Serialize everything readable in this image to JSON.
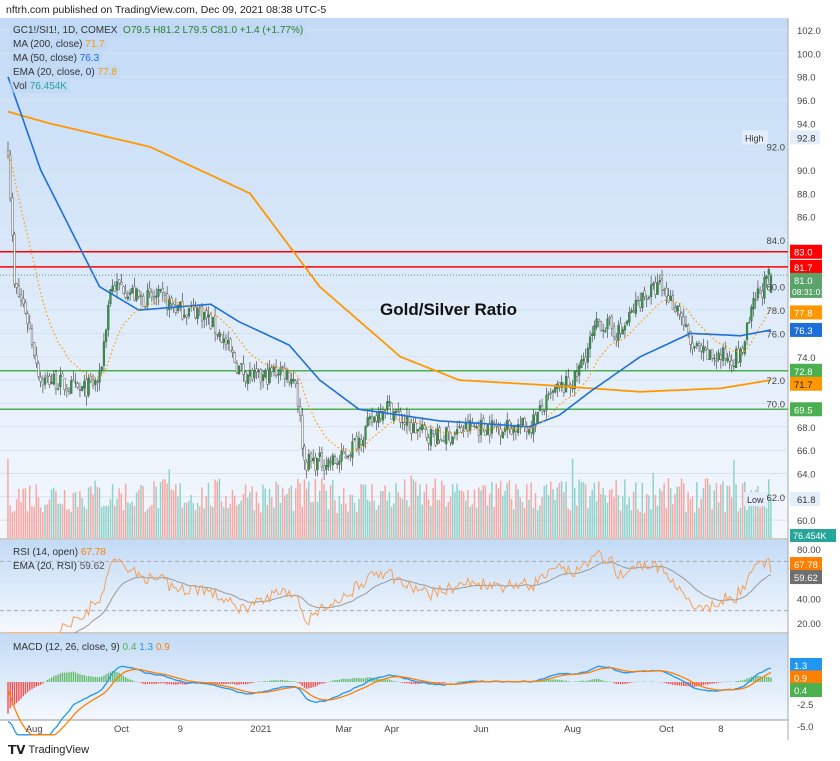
{
  "header": {
    "publisher": "nftrh.com published on TradingView.com, Dec 09, 2021 08:38 UTC-5"
  },
  "legend": {
    "symbol": "GC1!/SI1!, 1D, COMEX",
    "ohlc": "O79.5  H81.2  L79.5  C81.0  +1.4 (+1.77%)",
    "ma200_label": "MA (200, close)",
    "ma200_value": "71.7",
    "ma50_label": "MA (50, close)",
    "ma50_value": "76.3",
    "ema20_label": "EMA (20, close, 0)",
    "ema20_value": "77.8",
    "vol_label": "Vol",
    "vol_value": "76.454K",
    "rsi_label": "RSI (14, open)",
    "rsi_value": "67.78",
    "rsi_ema_label": "EMA (20, RSI)",
    "rsi_ema_value": "59.62",
    "macd_label": "MACD (12, 26, close, 9)",
    "macd_hist": "0.4",
    "macd_line": "1.3",
    "macd_signal": "0.9"
  },
  "annotation": "Gold/Silver Ratio",
  "high_label": "High",
  "high_value": "92.8",
  "low_label": "Low",
  "low_value": "61.8",
  "price_tags": {
    "last": "81.0",
    "countdown": "08:31:01",
    "red1": "83.0",
    "red2": "81.7",
    "ema": "77.8",
    "ma50": "76.3",
    "green1": "72.8",
    "ma200": "71.7",
    "green2": "69.5",
    "vol": "76.454K",
    "rsi": "67.78",
    "rsi_ema": "59.62",
    "macd_line": "1.3",
    "macd_signal": "0.9",
    "macd_hist": "0.4"
  },
  "footer": {
    "brand": "TradingView"
  },
  "colors": {
    "up": "#26a69a",
    "down": "#ef5350",
    "ma200": "#ff9800",
    "ma50": "#2962ff",
    "ema": "#ff9800",
    "red_line": "#ff0000",
    "green_line": "#4caf50"
  },
  "chart_data": {
    "type": "candlestick",
    "price_axis": {
      "min": 60,
      "max": 102,
      "ticks": [
        60,
        62,
        64,
        66,
        68,
        70,
        72,
        74,
        76,
        78,
        80,
        84,
        86,
        88,
        90,
        92,
        94,
        96,
        98,
        100,
        102
      ]
    },
    "rsi_axis": {
      "ticks": [
        20,
        40,
        80
      ]
    },
    "macd_axis": {
      "ticks": [
        -5.0,
        -2.5
      ]
    },
    "x_labels": [
      {
        "day": 12,
        "label": "Aug"
      },
      {
        "day": 52,
        "label": "Oct"
      },
      {
        "day": 79,
        "label": "9"
      },
      {
        "day": 116,
        "label": "2021"
      },
      {
        "day": 154,
        "label": "Mar"
      },
      {
        "day": 176,
        "label": "Apr"
      },
      {
        "day": 217,
        "label": "Jun"
      },
      {
        "day": 259,
        "label": "Aug"
      },
      {
        "day": 302,
        "label": "Oct"
      },
      {
        "day": 327,
        "label": "8"
      }
    ],
    "horizontal_lines": [
      {
        "value": 83.0,
        "color": "red"
      },
      {
        "value": 81.7,
        "color": "red"
      },
      {
        "value": 72.8,
        "color": "green"
      },
      {
        "value": 69.5,
        "color": "green"
      }
    ],
    "close_anchors": [
      [
        0,
        92
      ],
      [
        3,
        80
      ],
      [
        8,
        78
      ],
      [
        15,
        72
      ],
      [
        21,
        72
      ],
      [
        33,
        71
      ],
      [
        42,
        72
      ],
      [
        47,
        80
      ],
      [
        53,
        80
      ],
      [
        60,
        79
      ],
      [
        70,
        79
      ],
      [
        79,
        78
      ],
      [
        88,
        78
      ],
      [
        97,
        76
      ],
      [
        106,
        73
      ],
      [
        115,
        72
      ],
      [
        125,
        73
      ],
      [
        132,
        72
      ],
      [
        136,
        65
      ],
      [
        143,
        65
      ],
      [
        152,
        65
      ],
      [
        161,
        67
      ],
      [
        173,
        70
      ],
      [
        184,
        68
      ],
      [
        198,
        67
      ],
      [
        212,
        68
      ],
      [
        226,
        68
      ],
      [
        239,
        68
      ],
      [
        251,
        71
      ],
      [
        260,
        72
      ],
      [
        271,
        77
      ],
      [
        281,
        76
      ],
      [
        290,
        79
      ],
      [
        299,
        80
      ],
      [
        308,
        78
      ],
      [
        313,
        75
      ],
      [
        320,
        74
      ],
      [
        327,
        74
      ],
      [
        336,
        74
      ],
      [
        343,
        79
      ],
      [
        350,
        81
      ]
    ],
    "ma200_anchors": [
      [
        0,
        95
      ],
      [
        19,
        94
      ],
      [
        65,
        92
      ],
      [
        111,
        88
      ],
      [
        143,
        80
      ],
      [
        180,
        74
      ],
      [
        207,
        72
      ],
      [
        244,
        71.6
      ],
      [
        290,
        71
      ],
      [
        327,
        71.3
      ],
      [
        350,
        72
      ]
    ],
    "ma50_anchors": [
      [
        0,
        98
      ],
      [
        15,
        90
      ],
      [
        42,
        80
      ],
      [
        60,
        78
      ],
      [
        93,
        78.5
      ],
      [
        106,
        77
      ],
      [
        129,
        75
      ],
      [
        143,
        72
      ],
      [
        161,
        69.5
      ],
      [
        180,
        69
      ],
      [
        198,
        68.5
      ],
      [
        216,
        68.3
      ],
      [
        239,
        68
      ],
      [
        253,
        69
      ],
      [
        267,
        71
      ],
      [
        290,
        74
      ],
      [
        313,
        76
      ],
      [
        336,
        75.8
      ],
      [
        350,
        76.3
      ]
    ]
  }
}
